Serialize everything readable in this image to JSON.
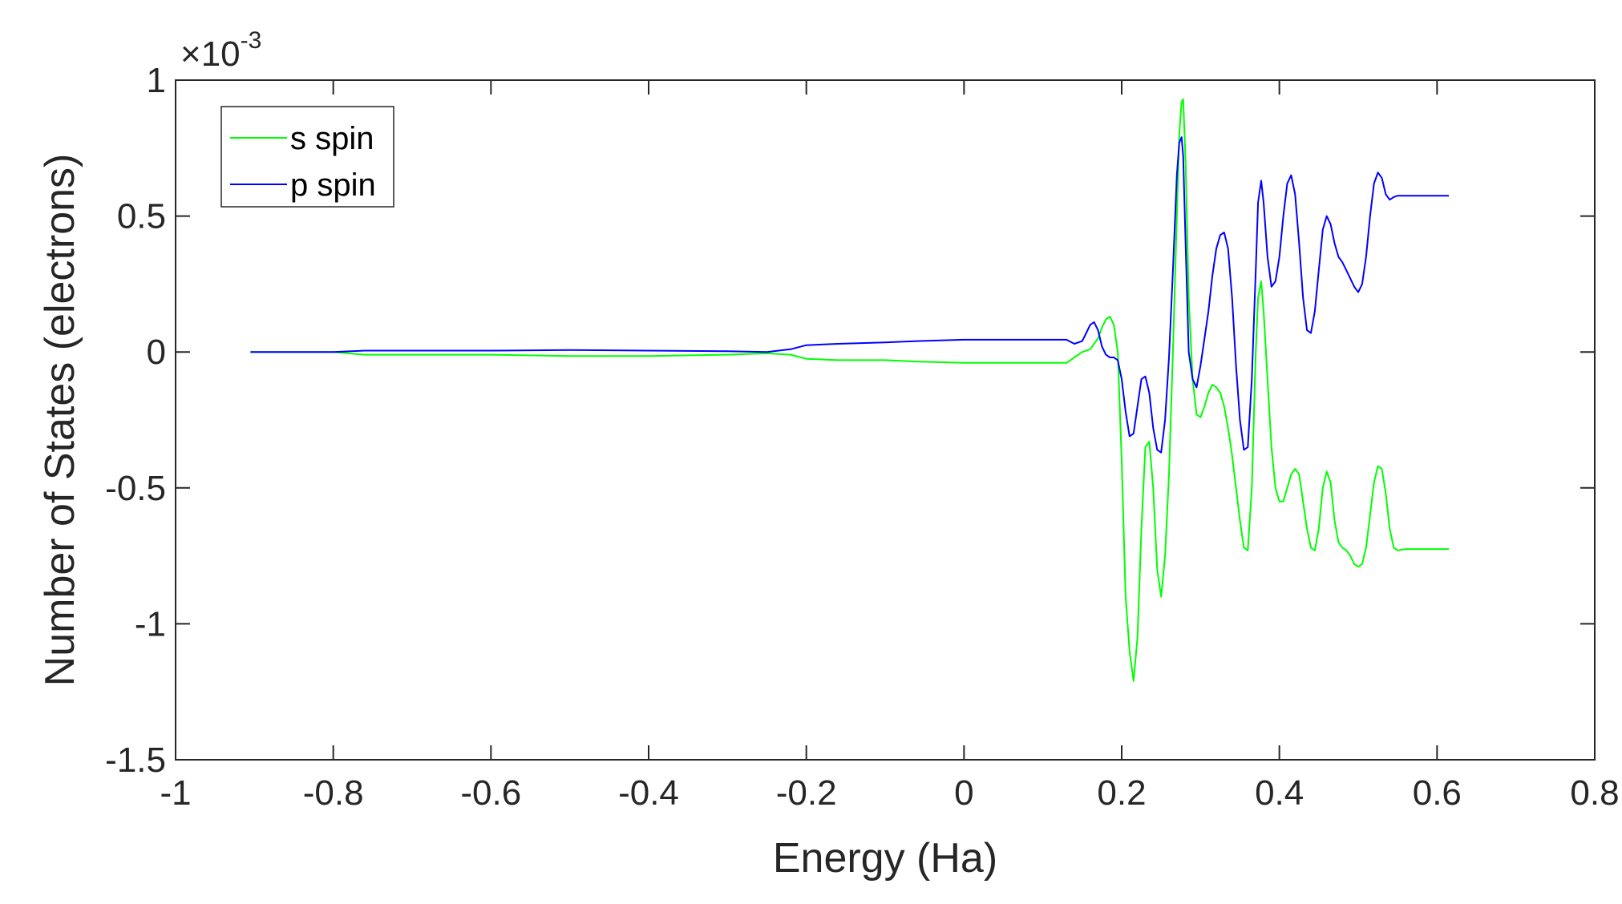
{
  "chart_data": {
    "type": "line",
    "title": "",
    "xlabel": "Energy (Ha)",
    "ylabel": "Number of States (electrons)",
    "xlim": [
      -1,
      0.8
    ],
    "ylim": [
      -1.5,
      1
    ],
    "y_multiplier": {
      "base": "×10",
      "exponent": "-3"
    },
    "xticks": [
      "-1",
      "-0.8",
      "-0.6",
      "-0.4",
      "-0.2",
      "0",
      "0.2",
      "0.4",
      "0.6",
      "0.8"
    ],
    "yticks": [
      "-1.5",
      "-1",
      "-0.5",
      "0",
      "0.5",
      "1"
    ],
    "grid": false,
    "legend_position": "top-left",
    "series": [
      {
        "name": "s spin",
        "color": "#00ff00",
        "x": [
          -0.905,
          -0.8,
          -0.76,
          -0.6,
          -0.5,
          -0.4,
          -0.3,
          -0.25,
          -0.22,
          -0.2,
          -0.16,
          -0.1,
          -0.06,
          0.0,
          0.05,
          0.1,
          0.13,
          0.14,
          0.15,
          0.16,
          0.17,
          0.175,
          0.18,
          0.185,
          0.19,
          0.195,
          0.2,
          0.205,
          0.21,
          0.215,
          0.22,
          0.225,
          0.23,
          0.235,
          0.24,
          0.245,
          0.25,
          0.255,
          0.26,
          0.265,
          0.27,
          0.273,
          0.276,
          0.278,
          0.281,
          0.285,
          0.29,
          0.295,
          0.3,
          0.305,
          0.31,
          0.315,
          0.32,
          0.325,
          0.33,
          0.335,
          0.34,
          0.345,
          0.35,
          0.355,
          0.36,
          0.365,
          0.37,
          0.373,
          0.377,
          0.38,
          0.385,
          0.39,
          0.395,
          0.4,
          0.405,
          0.41,
          0.415,
          0.42,
          0.425,
          0.43,
          0.435,
          0.44,
          0.445,
          0.45,
          0.455,
          0.46,
          0.465,
          0.47,
          0.475,
          0.48,
          0.485,
          0.49,
          0.495,
          0.5,
          0.505,
          0.51,
          0.515,
          0.52,
          0.525,
          0.53,
          0.535,
          0.54,
          0.545,
          0.55,
          0.56,
          0.58,
          0.6,
          0.615
        ],
        "values": [
          0,
          0,
          -0.01,
          -0.01,
          -0.015,
          -0.015,
          -0.01,
          -0.005,
          -0.01,
          -0.025,
          -0.03,
          -0.03,
          -0.035,
          -0.04,
          -0.04,
          -0.04,
          -0.04,
          -0.02,
          0,
          0.01,
          0.05,
          0.09,
          0.12,
          0.13,
          0.1,
          0.0,
          -0.4,
          -0.9,
          -1.1,
          -1.21,
          -1.05,
          -0.65,
          -0.35,
          -0.33,
          -0.5,
          -0.8,
          -0.9,
          -0.75,
          -0.45,
          0.0,
          0.5,
          0.8,
          0.92,
          0.93,
          0.7,
          0.2,
          -0.1,
          -0.23,
          -0.24,
          -0.2,
          -0.15,
          -0.12,
          -0.13,
          -0.15,
          -0.2,
          -0.28,
          -0.38,
          -0.5,
          -0.62,
          -0.72,
          -0.73,
          -0.5,
          0.0,
          0.2,
          0.26,
          0.15,
          -0.1,
          -0.35,
          -0.5,
          -0.55,
          -0.55,
          -0.5,
          -0.45,
          -0.43,
          -0.45,
          -0.55,
          -0.65,
          -0.72,
          -0.73,
          -0.65,
          -0.5,
          -0.44,
          -0.48,
          -0.62,
          -0.7,
          -0.72,
          -0.73,
          -0.75,
          -0.78,
          -0.79,
          -0.78,
          -0.72,
          -0.6,
          -0.48,
          -0.42,
          -0.43,
          -0.52,
          -0.65,
          -0.72,
          -0.73,
          -0.725,
          -0.725,
          -0.725,
          -0.725
        ]
      },
      {
        "name": "p spin",
        "color": "#0000ff",
        "x": [
          -0.905,
          -0.8,
          -0.76,
          -0.6,
          -0.5,
          -0.4,
          -0.3,
          -0.25,
          -0.22,
          -0.2,
          -0.16,
          -0.1,
          -0.06,
          0.0,
          0.05,
          0.1,
          0.13,
          0.14,
          0.15,
          0.155,
          0.16,
          0.165,
          0.17,
          0.175,
          0.18,
          0.185,
          0.19,
          0.195,
          0.2,
          0.205,
          0.21,
          0.215,
          0.22,
          0.225,
          0.23,
          0.235,
          0.24,
          0.245,
          0.25,
          0.255,
          0.26,
          0.265,
          0.27,
          0.273,
          0.276,
          0.278,
          0.281,
          0.285,
          0.29,
          0.295,
          0.3,
          0.305,
          0.31,
          0.315,
          0.32,
          0.325,
          0.33,
          0.335,
          0.34,
          0.345,
          0.35,
          0.355,
          0.36,
          0.365,
          0.37,
          0.373,
          0.377,
          0.38,
          0.385,
          0.39,
          0.395,
          0.4,
          0.405,
          0.41,
          0.415,
          0.42,
          0.425,
          0.43,
          0.435,
          0.44,
          0.445,
          0.45,
          0.455,
          0.46,
          0.465,
          0.47,
          0.475,
          0.48,
          0.485,
          0.49,
          0.495,
          0.5,
          0.505,
          0.51,
          0.515,
          0.52,
          0.525,
          0.53,
          0.535,
          0.54,
          0.545,
          0.55,
          0.56,
          0.58,
          0.6,
          0.615
        ],
        "values": [
          0,
          0,
          0.005,
          0.005,
          0.007,
          0.005,
          0.003,
          0.0,
          0.01,
          0.025,
          0.03,
          0.035,
          0.04,
          0.045,
          0.045,
          0.045,
          0.045,
          0.03,
          0.04,
          0.07,
          0.1,
          0.11,
          0.08,
          0.02,
          -0.01,
          -0.02,
          -0.02,
          -0.03,
          -0.1,
          -0.22,
          -0.31,
          -0.3,
          -0.2,
          -0.1,
          -0.09,
          -0.15,
          -0.28,
          -0.36,
          -0.37,
          -0.25,
          -0.02,
          0.3,
          0.65,
          0.77,
          0.79,
          0.72,
          0.4,
          0.0,
          -0.1,
          -0.13,
          -0.05,
          0.05,
          0.15,
          0.28,
          0.38,
          0.43,
          0.44,
          0.38,
          0.2,
          -0.05,
          -0.25,
          -0.36,
          -0.35,
          -0.1,
          0.3,
          0.55,
          0.63,
          0.55,
          0.35,
          0.24,
          0.26,
          0.35,
          0.5,
          0.62,
          0.65,
          0.58,
          0.4,
          0.2,
          0.08,
          0.07,
          0.15,
          0.3,
          0.45,
          0.5,
          0.47,
          0.4,
          0.35,
          0.33,
          0.3,
          0.27,
          0.24,
          0.22,
          0.25,
          0.35,
          0.5,
          0.62,
          0.66,
          0.64,
          0.58,
          0.56,
          0.57,
          0.575,
          0.575,
          0.575,
          0.575,
          0.575
        ]
      }
    ]
  }
}
